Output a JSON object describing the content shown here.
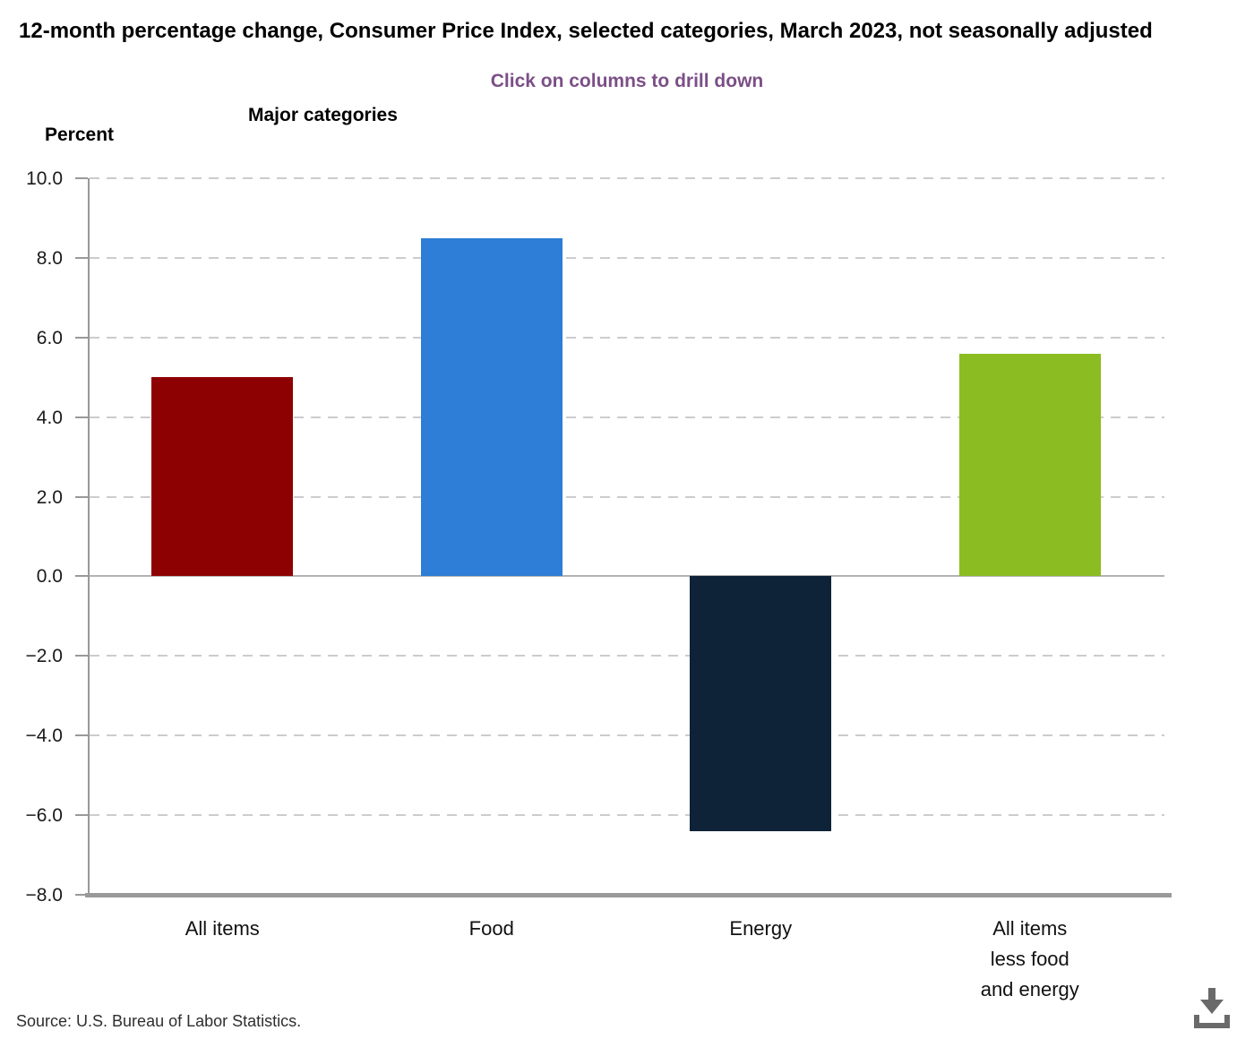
{
  "title": "12-month percentage change, Consumer Price Index, selected categories, March 2023, not seasonally adjusted",
  "subtitle": "Click on columns to drill down",
  "axis_titles": {
    "x": "Major categories",
    "y": "Percent"
  },
  "source": "Source: U.S. Bureau of Labor Statistics.",
  "colors": {
    "subtitle_text": "#7b4f87",
    "gridline": "#cccccc",
    "zero_line": "#b3b3b3",
    "axis_line": "#999999",
    "tick_label": "#1a1a1a",
    "source_text": "#2e2e2e",
    "download_icon": "#6a6a6a"
  },
  "chart_data": {
    "type": "bar",
    "title": "12-month percentage change, Consumer Price Index, selected categories, March 2023, not seasonally adjusted",
    "subtitle": "Click on columns to drill down",
    "xlabel": "Major categories",
    "ylabel": "Percent",
    "categories": [
      "All items",
      "Food",
      "Energy",
      "All items less food and energy"
    ],
    "category_label_lines": [
      [
        "All items"
      ],
      [
        "Food"
      ],
      [
        "Energy"
      ],
      [
        "All items",
        "less food",
        "and energy"
      ]
    ],
    "values": [
      5.0,
      8.5,
      -6.4,
      5.6
    ],
    "bar_colors": [
      "#8e0102",
      "#2e7dd7",
      "#0f2338",
      "#8bbc21"
    ],
    "ylim": [
      -8.0,
      10.0
    ],
    "yticks": [
      10.0,
      8.0,
      6.0,
      4.0,
      2.0,
      0.0,
      -2.0,
      -4.0,
      -6.0,
      -8.0
    ],
    "grid": "horizontal-dashed",
    "legend": "none"
  }
}
